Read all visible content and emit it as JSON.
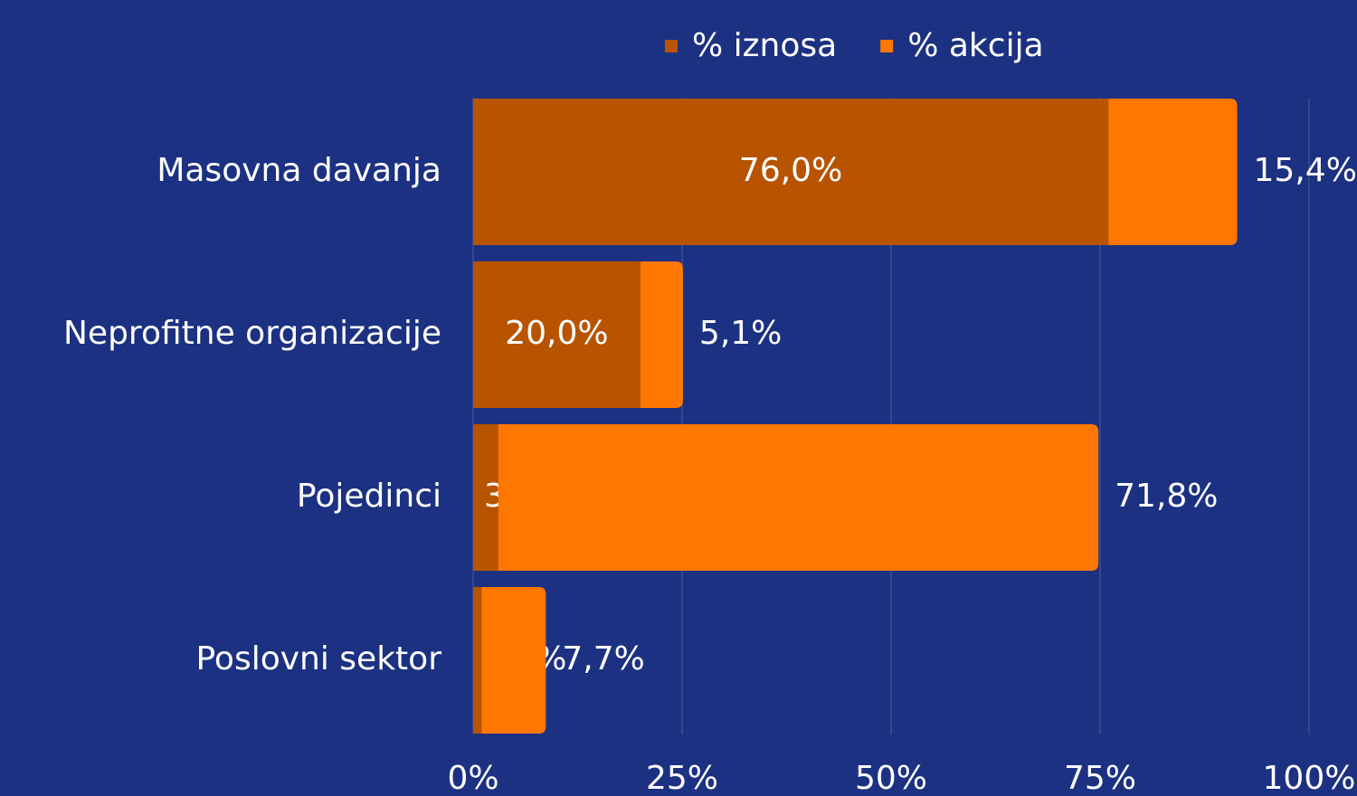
{
  "chart_data": {
    "type": "stacked_barh",
    "categories": [
      "Masovna davanja",
      "Neprofitne organizacije",
      "Pojedinci",
      "Poslovni sektor"
    ],
    "series": [
      {
        "name": "% iznosa",
        "color": "#b85400",
        "values": [
          76.0,
          20.0,
          3.0,
          1.0
        ],
        "value_labels": [
          "76,0%",
          "20,0%",
          "3,0%",
          "1,0%"
        ]
      },
      {
        "name": "% akcija",
        "color": "#ff7700",
        "values": [
          15.4,
          5.1,
          71.8,
          7.7
        ],
        "value_labels": [
          "15,4%",
          "5,1%",
          "71,8%",
          "7,7%"
        ]
      }
    ],
    "xlim": [
      0,
      100
    ],
    "xticks": [
      {
        "value": 0,
        "label": "0%"
      },
      {
        "value": 25,
        "label": "25%"
      },
      {
        "value": 50,
        "label": "50%"
      },
      {
        "value": 75,
        "label": "75%"
      },
      {
        "value": 100,
        "label": "100%"
      }
    ],
    "grid": true,
    "legend": "top"
  }
}
